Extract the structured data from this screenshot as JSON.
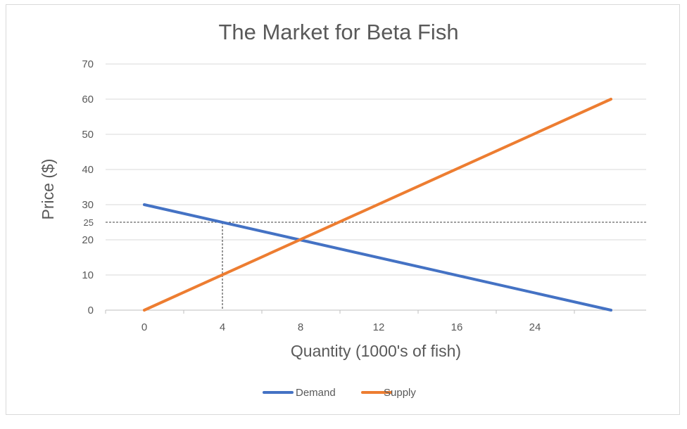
{
  "chart_data": {
    "type": "line",
    "title": "The Market for Beta Fish",
    "xlabel": "Quantity (1000's of fish)",
    "ylabel": "Price ($)",
    "ylim": [
      0,
      70
    ],
    "x_categories": [
      "0",
      "4",
      "8",
      "12",
      "16",
      "24"
    ],
    "y_ticks": [
      0,
      10,
      20,
      30,
      40,
      50,
      60,
      70
    ],
    "y_extra_tick": 25,
    "grid": true,
    "legend_position": "bottom",
    "series": [
      {
        "name": "Demand",
        "color": "#4472c4",
        "x": [
          0,
          24
        ],
        "y": [
          30,
          0
        ]
      },
      {
        "name": "Supply",
        "color": "#ed7d31",
        "x": [
          0,
          24
        ],
        "y": [
          0,
          60
        ]
      }
    ],
    "reference_lines": {
      "price": 25,
      "quantity": 4
    }
  }
}
